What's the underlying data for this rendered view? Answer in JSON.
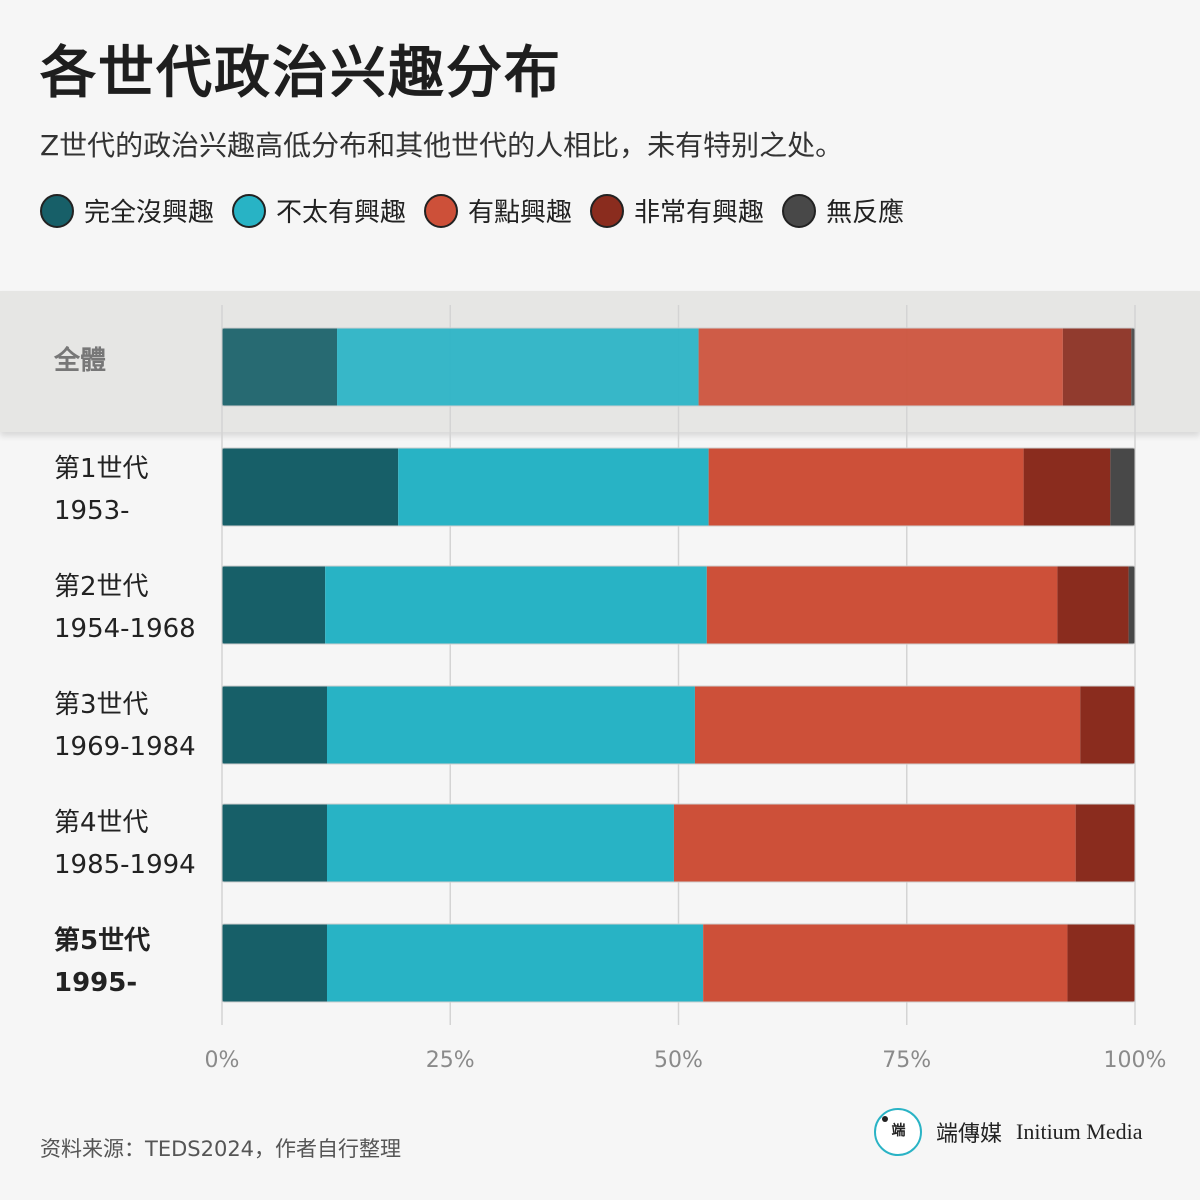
{
  "header": {
    "title": "各世代政治兴趣分布",
    "subtitle": "Z世代的政治兴趣高低分布和其他世代的人相比，未有特别之处。"
  },
  "colors": {
    "none_at_all": "#175f68",
    "not_very": "#28b3c5",
    "somewhat": "#cd5039",
    "very": "#8a2c1e",
    "no_response": "#484848"
  },
  "chart_data": {
    "type": "bar",
    "orientation": "horizontal",
    "stacked": true,
    "categories": [
      "全體",
      "第1世代 1953-",
      "第2世代 1954-1968",
      "第3世代 1969-1984",
      "第4世代 1985-1994",
      "第5世代 1995-"
    ],
    "series": [
      {
        "name": "完全沒興趣",
        "values": [
          12.6,
          19.3,
          11.3,
          11.5,
          11.5,
          11.5
        ]
      },
      {
        "name": "不太有興趣",
        "values": [
          39.6,
          34.0,
          41.8,
          40.3,
          38.0,
          41.2
        ]
      },
      {
        "name": "有點興趣",
        "values": [
          39.9,
          34.5,
          38.4,
          42.2,
          44.0,
          39.9
        ]
      },
      {
        "name": "非常有興趣",
        "values": [
          7.5,
          9.5,
          7.8,
          6.0,
          6.5,
          7.4
        ]
      },
      {
        "name": "無反應",
        "values": [
          0.4,
          2.7,
          0.7,
          0.0,
          0.0,
          0.0
        ]
      }
    ],
    "xlim": [
      0,
      100
    ],
    "x_ticks": [
      "0%",
      "25%",
      "50%",
      "75%",
      "100%"
    ],
    "grid": true,
    "legend": "top-left"
  },
  "rows": [
    {
      "line1": "全體",
      "line2": ""
    },
    {
      "line1": "第1世代",
      "line2": "1953-"
    },
    {
      "line1": "第2世代",
      "line2": "1954-1968"
    },
    {
      "line1": "第3世代",
      "line2": "1969-1984"
    },
    {
      "line1": "第4世代",
      "line2": "1985-1994"
    },
    {
      "line1": "第5世代",
      "line2": "1995-"
    }
  ],
  "footer": {
    "source": "资料来源：TEDS2024，作者自行整理",
    "brand_name": "端傳媒",
    "brand_en": "Initium Media",
    "brand_logo_glyph": "端"
  }
}
